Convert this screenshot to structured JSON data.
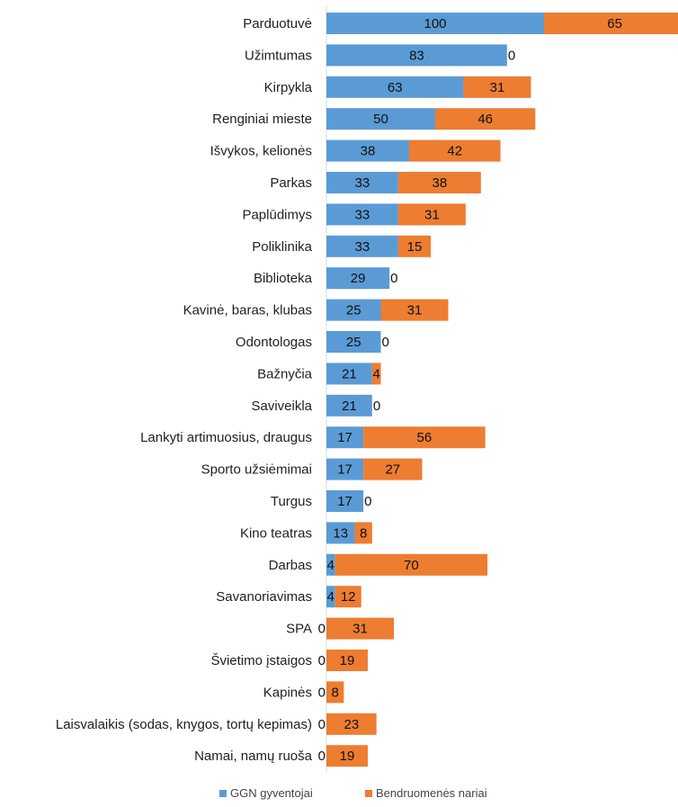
{
  "chart_data": {
    "type": "bar",
    "orientation": "horizontal",
    "stacked": true,
    "grid": false,
    "legend_position": "bottom",
    "title": "",
    "xlabel": "",
    "ylabel": "",
    "xlim": [
      0,
      165
    ],
    "categories": [
      "Parduotuvė",
      "Užimtumas",
      "Kirpykla",
      "Renginiai mieste",
      "Išvykos, kelionės",
      "Parkas",
      "Paplūdimys",
      "Poliklinika",
      "Biblioteka",
      "Kavinė, baras, klubas",
      "Odontologas",
      "Bažnyčia",
      "Saviveikla",
      "Lankyti artimuosius, draugus",
      "Sporto užsiėmimai",
      "Turgus",
      "Kino teatras",
      "Darbas",
      "Savanoriavimas",
      "SPA",
      "Švietimo įstaigos",
      "Kapinės",
      "Laisvalaikis (sodas, knygos, tortų kepimas)",
      "Namai, namų ruoša"
    ],
    "series": [
      {
        "name": "GGN gyventojai",
        "color": "#5b9bd5",
        "values": [
          100,
          83,
          63,
          50,
          38,
          33,
          33,
          33,
          29,
          25,
          25,
          21,
          21,
          17,
          17,
          17,
          13,
          4,
          4,
          0,
          0,
          0,
          0,
          0
        ]
      },
      {
        "name": "Bendruomenės nariai",
        "color": "#ed7d31",
        "values": [
          65,
          0,
          31,
          46,
          42,
          38,
          31,
          15,
          0,
          31,
          0,
          4,
          0,
          56,
          27,
          0,
          8,
          70,
          12,
          31,
          19,
          8,
          23,
          19
        ]
      }
    ]
  }
}
